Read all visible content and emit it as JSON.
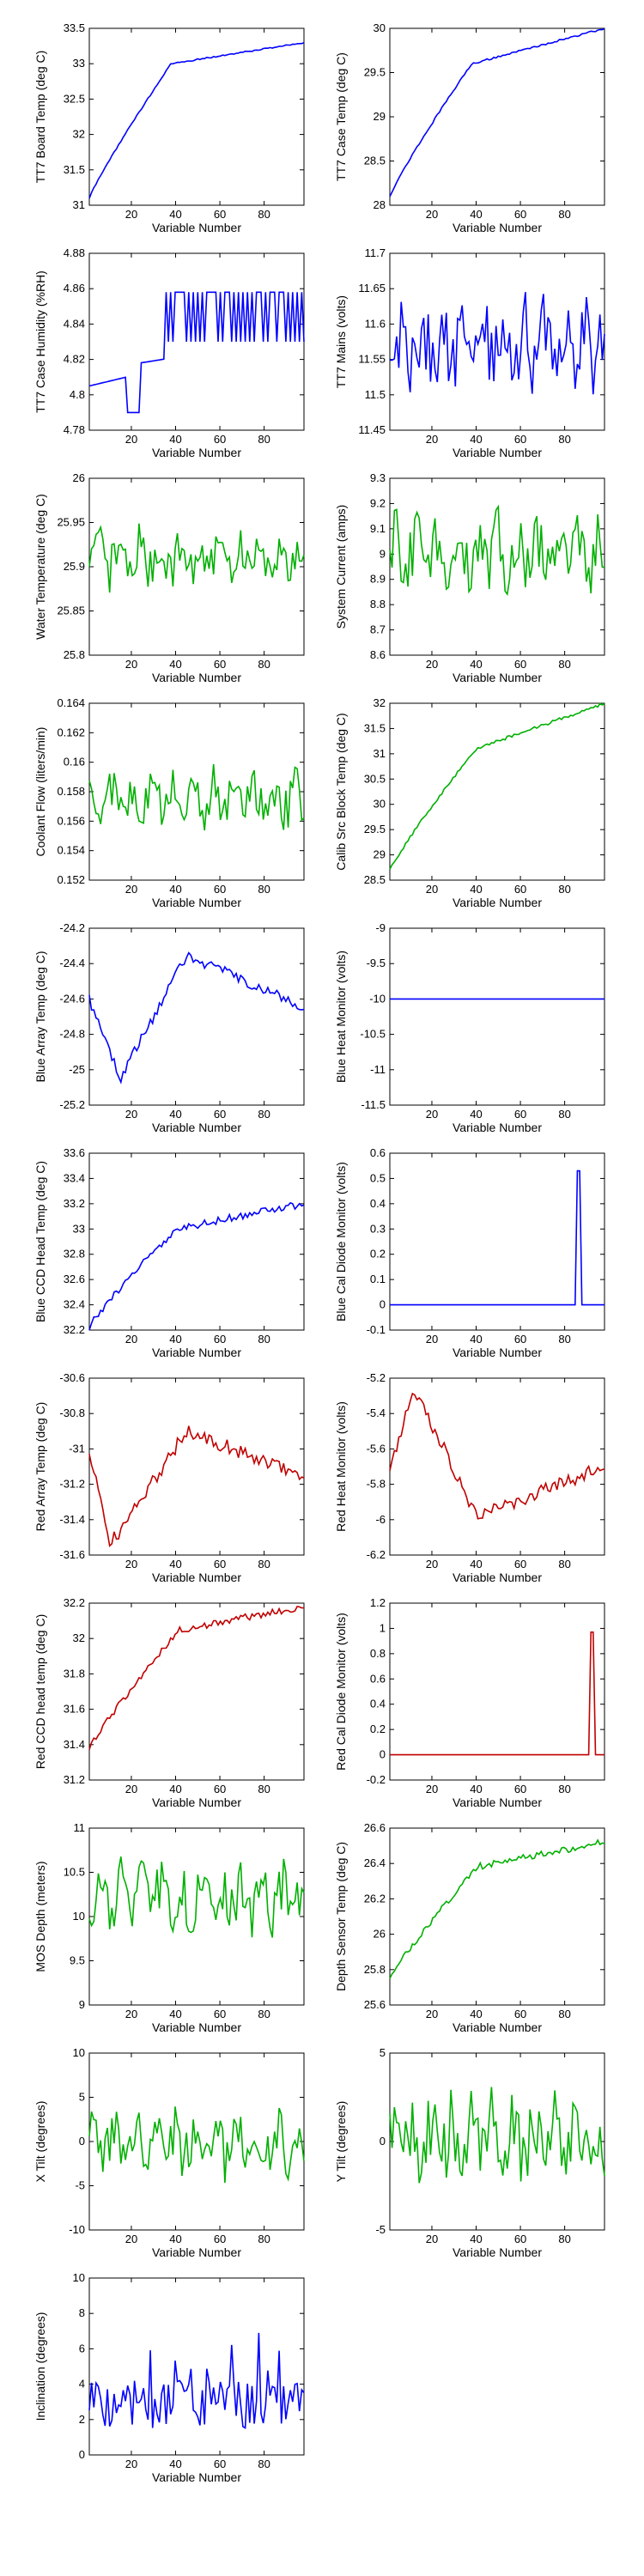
{
  "figure": {
    "xlabel": "Variable Number"
  },
  "chart_data": [
    {
      "type": "line",
      "ylabel": "TT7 Board Temp (deg C)",
      "xlim": [
        1,
        98
      ],
      "ylim": [
        31,
        33.5
      ],
      "yticks": [
        "31",
        "31.5",
        "32",
        "32.5",
        "33",
        "33.5"
      ],
      "xticks": [
        "20",
        "40",
        "60",
        "80"
      ],
      "color": "#0000ff",
      "pattern": "rise_flat",
      "x_range": [
        1,
        98
      ],
      "y_start": 31.1,
      "y_knee": 33.0,
      "y_end": 33.3,
      "knee_x": 38,
      "noise": 0.01
    },
    {
      "type": "line",
      "ylabel": "TT7 Case Temp (deg C)",
      "xlim": [
        1,
        98
      ],
      "ylim": [
        28,
        30
      ],
      "yticks": [
        "28",
        "28.5",
        "29",
        "29.5",
        "30"
      ],
      "xticks": [
        "20",
        "40",
        "60",
        "80"
      ],
      "color": "#0000ff",
      "pattern": "rise_flat",
      "x_range": [
        1,
        98
      ],
      "y_start": 28.1,
      "y_knee": 29.6,
      "y_end": 30.0,
      "knee_x": 38,
      "noise": 0.01
    },
    {
      "type": "line",
      "ylabel": "TT7 Case Humidity (%RH)",
      "xlim": [
        1,
        98
      ],
      "ylim": [
        4.78,
        4.88
      ],
      "yticks": [
        "4.78",
        "4.8",
        "4.82",
        "4.84",
        "4.86",
        "4.88"
      ],
      "xticks": [
        "20",
        "40",
        "60",
        "80"
      ],
      "color": "#0000ff",
      "pattern": "step_toggle",
      "x_range": [
        1,
        98
      ],
      "y_start": 4.805,
      "y_knee": 4.82,
      "y_end": 4.858,
      "knee_x": 35,
      "toggle_low": 4.83,
      "noise": 0.002
    },
    {
      "type": "line",
      "ylabel": "TT7 Mains (volts)",
      "xlim": [
        1,
        98
      ],
      "ylim": [
        11.45,
        11.7
      ],
      "yticks": [
        "11.45",
        "11.5",
        "11.55",
        "11.6",
        "11.65",
        "11.7"
      ],
      "xticks": [
        "20",
        "40",
        "60",
        "80"
      ],
      "color": "#0000ff",
      "pattern": "noise",
      "x_range": [
        1,
        98
      ],
      "y_mean": 11.57,
      "noise": 0.05
    },
    {
      "type": "line",
      "ylabel": "Water Temperature (deg C)",
      "xlim": [
        1,
        98
      ],
      "ylim": [
        25.8,
        26
      ],
      "yticks": [
        "25.8",
        "25.85",
        "25.9",
        "25.95",
        "26"
      ],
      "xticks": [
        "20",
        "40",
        "60",
        "80"
      ],
      "color": "#00b000",
      "pattern": "noise",
      "x_range": [
        1,
        98
      ],
      "y_mean": 25.91,
      "noise": 0.025
    },
    {
      "type": "line",
      "ylabel": "System Current (amps)",
      "xlim": [
        1,
        98
      ],
      "ylim": [
        8.6,
        9.3
      ],
      "yticks": [
        "8.6",
        "8.7",
        "8.8",
        "8.9",
        "9",
        "9.1",
        "9.2",
        "9.3"
      ],
      "xticks": [
        "20",
        "40",
        "60",
        "80"
      ],
      "color": "#00b000",
      "pattern": "noise",
      "x_range": [
        1,
        98
      ],
      "y_mean": 9.0,
      "noise": 0.12
    },
    {
      "type": "line",
      "ylabel": "Coolant Flow (liters/min)",
      "xlim": [
        1,
        98
      ],
      "ylim": [
        0.152,
        0.164
      ],
      "yticks": [
        "0.152",
        "0.154",
        "0.156",
        "0.158",
        "0.16",
        "0.162",
        "0.164"
      ],
      "xticks": [
        "20",
        "40",
        "60",
        "80"
      ],
      "color": "#00b000",
      "pattern": "noise",
      "x_range": [
        1,
        98
      ],
      "y_mean": 0.1575,
      "noise": 0.0015
    },
    {
      "type": "line",
      "ylabel": "Calib Src Block Temp (deg C)",
      "xlim": [
        1,
        98
      ],
      "ylim": [
        28.5,
        32
      ],
      "yticks": [
        "28.5",
        "29",
        "29.5",
        "30",
        "30.5",
        "31",
        "31.5",
        "32"
      ],
      "xticks": [
        "20",
        "40",
        "60",
        "80"
      ],
      "color": "#00b000",
      "pattern": "rise_flat",
      "x_range": [
        1,
        98
      ],
      "y_start": 28.7,
      "y_knee": 31.1,
      "y_end": 32.0,
      "knee_x": 40,
      "noise": 0.03
    },
    {
      "type": "line",
      "ylabel": "Blue Array Temp (deg C)",
      "xlim": [
        1,
        98
      ],
      "ylim": [
        -25.2,
        -24.2
      ],
      "yticks": [
        "-25.2",
        "-25",
        "-24.8",
        "-24.6",
        "-24.4",
        "-24.2"
      ],
      "xticks": [
        "20",
        "40",
        "60",
        "80"
      ],
      "color": "#0000ff",
      "pattern": "dip_rise",
      "x_range": [
        1,
        98
      ],
      "y_start": -24.6,
      "y_min": -25.05,
      "min_x": 15,
      "y_peak": -24.35,
      "peak_x": 45,
      "y_end": -24.65,
      "noise": 0.03
    },
    {
      "type": "line",
      "ylabel": "Blue Heat Monitor (volts)",
      "xlim": [
        1,
        98
      ],
      "ylim": [
        -11.5,
        -9
      ],
      "yticks": [
        "-11.5",
        "-11",
        "-10.5",
        "-10",
        "-9.5",
        "-9"
      ],
      "xticks": [
        "20",
        "40",
        "60",
        "80"
      ],
      "color": "#0000ff",
      "pattern": "const",
      "x_range": [
        1,
        98
      ],
      "y_mean": -10
    },
    {
      "type": "line",
      "ylabel": "Blue CCD Head Temp (deg C)",
      "xlim": [
        1,
        98
      ],
      "ylim": [
        32.2,
        33.6
      ],
      "yticks": [
        "32.2",
        "32.4",
        "32.6",
        "32.8",
        "33",
        "33.2",
        "33.4",
        "33.6"
      ],
      "xticks": [
        "20",
        "40",
        "60",
        "80"
      ],
      "color": "#0000ff",
      "pattern": "rise_flat",
      "x_range": [
        1,
        98
      ],
      "y_start": 32.22,
      "y_knee": 33.0,
      "y_end": 33.2,
      "knee_x": 40,
      "noise": 0.03
    },
    {
      "type": "line",
      "ylabel": "Blue Cal Diode Monitor (volts)",
      "xlim": [
        1,
        98
      ],
      "ylim": [
        -0.1,
        0.6
      ],
      "yticks": [
        "-0.1",
        "0",
        "0.1",
        "0.2",
        "0.3",
        "0.4",
        "0.5",
        "0.6"
      ],
      "xticks": [
        "20",
        "40",
        "60",
        "80"
      ],
      "color": "#0000ff",
      "pattern": "spike",
      "x_range": [
        1,
        98
      ],
      "y_mean": 0,
      "spike_x": [
        85,
        87
      ],
      "spike_y": 0.53
    },
    {
      "type": "line",
      "ylabel": "Red Array Temp (deg C)",
      "xlim": [
        1,
        98
      ],
      "ylim": [
        -31.6,
        -30.6
      ],
      "yticks": [
        "-31.6",
        "-31.4",
        "-31.2",
        "-31",
        "-30.8",
        "-30.6"
      ],
      "xticks": [
        "20",
        "40",
        "60",
        "80"
      ],
      "color": "#c00000",
      "pattern": "dip_rise",
      "x_range": [
        1,
        98
      ],
      "y_start": -31.0,
      "y_min": -31.55,
      "min_x": 10,
      "y_peak": -30.9,
      "peak_x": 45,
      "y_end": -31.15,
      "noise": 0.04
    },
    {
      "type": "line",
      "ylabel": "Red Heat Monitor (volts)",
      "xlim": [
        1,
        98
      ],
      "ylim": [
        -6.2,
        -5.2
      ],
      "yticks": [
        "-6.2",
        "-6",
        "-5.8",
        "-5.6",
        "-5.4",
        "-5.2"
      ],
      "xticks": [
        "20",
        "40",
        "60",
        "80"
      ],
      "color": "#c00000",
      "pattern": "peak_dip",
      "x_range": [
        1,
        98
      ],
      "y_start": -5.7,
      "y_peak": -5.25,
      "peak_x": 12,
      "y_min": -5.98,
      "min_x": 40,
      "y_end": -5.7,
      "noise": 0.04
    },
    {
      "type": "line",
      "ylabel": "Red CCD head temp (deg C)",
      "xlim": [
        1,
        98
      ],
      "ylim": [
        31.2,
        32.2
      ],
      "yticks": [
        "31.2",
        "31.4",
        "31.6",
        "31.8",
        "32",
        "32.2"
      ],
      "xticks": [
        "20",
        "40",
        "60",
        "80"
      ],
      "color": "#c00000",
      "pattern": "rise_flat",
      "x_range": [
        1,
        98
      ],
      "y_start": 31.38,
      "y_knee": 32.05,
      "y_end": 32.18,
      "knee_x": 42,
      "noise": 0.02
    },
    {
      "type": "line",
      "ylabel": "Red Cal Diode Monitor (volts)",
      "xlim": [
        1,
        98
      ],
      "ylim": [
        -0.2,
        1.2
      ],
      "yticks": [
        "-0.2",
        "0",
        "0.2",
        "0.4",
        "0.6",
        "0.8",
        "1",
        "1.2"
      ],
      "xticks": [
        "20",
        "40",
        "60",
        "80"
      ],
      "color": "#c00000",
      "pattern": "spike",
      "x_range": [
        1,
        98
      ],
      "y_mean": 0,
      "spike_x": [
        91,
        93
      ],
      "spike_y": 0.97
    },
    {
      "type": "line",
      "ylabel": "MOS Depth  (meters)",
      "xlim": [
        1,
        98
      ],
      "ylim": [
        9,
        11
      ],
      "yticks": [
        "9",
        "9.5",
        "10",
        "10.5",
        "11"
      ],
      "xticks": [
        "20",
        "40",
        "60",
        "80"
      ],
      "color": "#00b000",
      "pattern": "noise",
      "x_range": [
        1,
        98
      ],
      "y_mean": 10.2,
      "noise": 0.3
    },
    {
      "type": "line",
      "ylabel": "Depth Sensor Temp (deg C)",
      "xlim": [
        1,
        98
      ],
      "ylim": [
        25.6,
        26.6
      ],
      "yticks": [
        "25.6",
        "25.8",
        "26",
        "26.2",
        "26.4",
        "26.6"
      ],
      "xticks": [
        "20",
        "40",
        "60",
        "80"
      ],
      "color": "#00b000",
      "pattern": "rise_flat",
      "x_range": [
        1,
        98
      ],
      "y_start": 25.75,
      "y_knee": 26.38,
      "y_end": 26.52,
      "knee_x": 40,
      "noise": 0.02
    },
    {
      "type": "line",
      "ylabel": "X Tilt  (degrees)",
      "xlim": [
        1,
        98
      ],
      "ylim": [
        -10,
        10
      ],
      "yticks": [
        "-10",
        "-5",
        "0",
        "5",
        "10"
      ],
      "xticks": [
        "20",
        "40",
        "60",
        "80"
      ],
      "color": "#00b000",
      "pattern": "noise",
      "x_range": [
        1,
        98
      ],
      "y_mean": 0,
      "noise": 3
    },
    {
      "type": "line",
      "ylabel": "Y Tilt  (degrees)",
      "xlim": [
        1,
        98
      ],
      "ylim": [
        -5,
        5
      ],
      "yticks": [
        "-5",
        "0",
        "5"
      ],
      "xticks": [
        "20",
        "40",
        "60",
        "80"
      ],
      "color": "#00b000",
      "pattern": "noise",
      "x_range": [
        1,
        98
      ],
      "y_mean": 0,
      "noise": 2
    },
    {
      "type": "line",
      "ylabel": "Inclination  (degrees)",
      "xlim": [
        1,
        98
      ],
      "ylim": [
        0,
        10
      ],
      "yticks": [
        "0",
        "2",
        "4",
        "6",
        "8",
        "10"
      ],
      "xticks": [
        "20",
        "40",
        "60",
        "80"
      ],
      "color": "#0000ff",
      "pattern": "noise_pos",
      "x_range": [
        1,
        98
      ],
      "y_mean": 2.5,
      "noise": 1.8
    }
  ]
}
